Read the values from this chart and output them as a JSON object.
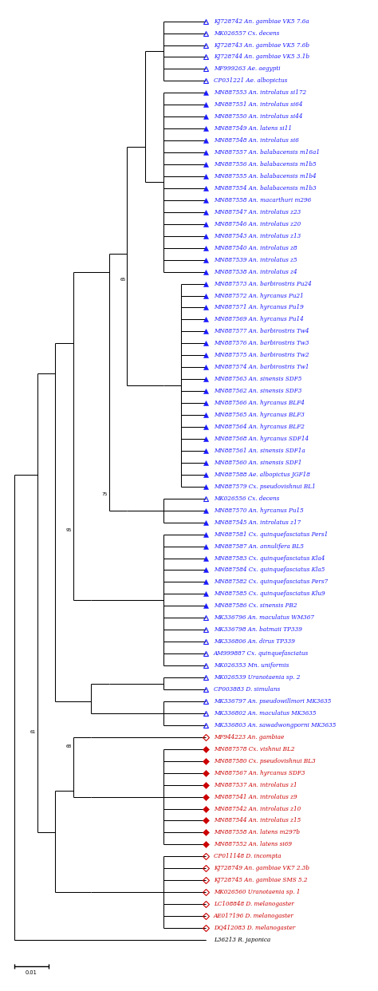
{
  "figsize": [
    4.74,
    12.42
  ],
  "dpi": 100,
  "taxa": [
    {
      "label": "KJ728742 An. gambiae VK5 7.6a",
      "symbol": "triangle_open",
      "color": "blue"
    },
    {
      "label": "MK026557 Cx. decens",
      "symbol": "triangle_open",
      "color": "blue"
    },
    {
      "label": "KJ728743 An. gambiae VK5 7.6b",
      "symbol": "triangle_open",
      "color": "blue"
    },
    {
      "label": "KJ728744 An. gambiae VK5 3.1b",
      "symbol": "triangle_open",
      "color": "blue"
    },
    {
      "label": "MF999263 Ae. aegypti",
      "symbol": "triangle_open",
      "color": "blue"
    },
    {
      "label": "CP031221 Ae. albopictus",
      "symbol": "triangle_open",
      "color": "blue"
    },
    {
      "label": "MN887553 An. introlatus si172",
      "symbol": "triangle_filled",
      "color": "blue"
    },
    {
      "label": "MN887551 An. introlatus si64",
      "symbol": "triangle_filled",
      "color": "blue"
    },
    {
      "label": "MN887550 An. introlatus si44",
      "symbol": "triangle_filled",
      "color": "blue"
    },
    {
      "label": "MN887549 An. latens si11",
      "symbol": "triangle_filled",
      "color": "blue"
    },
    {
      "label": "MN887548 An. introlatus si6",
      "symbol": "triangle_filled",
      "color": "blue"
    },
    {
      "label": "MN887557 An. balabacensis m16a1",
      "symbol": "triangle_filled",
      "color": "blue"
    },
    {
      "label": "MN887556 An. balabacensis m1b5",
      "symbol": "triangle_filled",
      "color": "blue"
    },
    {
      "label": "MN887555 An. balabacensis m1b4",
      "symbol": "triangle_filled",
      "color": "blue"
    },
    {
      "label": "MN887554 An. balabacensis m1b3",
      "symbol": "triangle_filled",
      "color": "blue"
    },
    {
      "label": "MN887558 An. macarthuri m296",
      "symbol": "triangle_filled",
      "color": "blue"
    },
    {
      "label": "MN887547 An. introlatus z23",
      "symbol": "triangle_filled",
      "color": "blue"
    },
    {
      "label": "MN887546 An. introlatus z20",
      "symbol": "triangle_filled",
      "color": "blue"
    },
    {
      "label": "MN887543 An. introlatus z13",
      "symbol": "triangle_filled",
      "color": "blue"
    },
    {
      "label": "MN887540 An. introlatus z8",
      "symbol": "triangle_filled",
      "color": "blue"
    },
    {
      "label": "MN887539 An. introlatus z5",
      "symbol": "triangle_filled",
      "color": "blue"
    },
    {
      "label": "MN887538 An. introlatus z4",
      "symbol": "triangle_filled",
      "color": "blue"
    },
    {
      "label": "MN887573 An. barbirostris Pu24",
      "symbol": "triangle_filled",
      "color": "blue"
    },
    {
      "label": "MN887572 An. hyrcanus Pu21",
      "symbol": "triangle_filled",
      "color": "blue"
    },
    {
      "label": "MN887571 An. hyrcanus Pu19",
      "symbol": "triangle_filled",
      "color": "blue"
    },
    {
      "label": "MN887569 An. hyrcanus Pu14",
      "symbol": "triangle_filled",
      "color": "blue"
    },
    {
      "label": "MN887577 An. barbirostris Tw4",
      "symbol": "triangle_filled",
      "color": "blue"
    },
    {
      "label": "MN887576 An. barbirostris Tw3",
      "symbol": "triangle_filled",
      "color": "blue"
    },
    {
      "label": "MN887575 An. barbirostris Tw2",
      "symbol": "triangle_filled",
      "color": "blue"
    },
    {
      "label": "MN887574 An. barbirostris Tw1",
      "symbol": "triangle_filled",
      "color": "blue"
    },
    {
      "label": "MN887563 An. sinensis SDF5",
      "symbol": "triangle_filled",
      "color": "blue"
    },
    {
      "label": "MN887562 An. sinensis SDF3",
      "symbol": "triangle_filled",
      "color": "blue"
    },
    {
      "label": "MN887566 An. hyrcanus BLF4",
      "symbol": "triangle_filled",
      "color": "blue"
    },
    {
      "label": "MN887565 An. hyrcanus BLF3",
      "symbol": "triangle_filled",
      "color": "blue"
    },
    {
      "label": "MN887564 An. hyrcanus BLF2",
      "symbol": "triangle_filled",
      "color": "blue"
    },
    {
      "label": "MN887568 An. hyrcanus SDF14",
      "symbol": "triangle_filled",
      "color": "blue"
    },
    {
      "label": "MN887561 An. sinensis SDF1a",
      "symbol": "triangle_filled",
      "color": "blue"
    },
    {
      "label": "MN887560 An. sinensis SDF1",
      "symbol": "triangle_filled",
      "color": "blue"
    },
    {
      "label": "MN887588 Ae. albopictus JGF18",
      "symbol": "triangle_filled",
      "color": "blue"
    },
    {
      "label": "MN887579 Cx. pseudovishnui BL1",
      "symbol": "triangle_filled",
      "color": "blue"
    },
    {
      "label": "MK026556 Cx. decens",
      "symbol": "triangle_open",
      "color": "blue"
    },
    {
      "label": "MN887570 An. hyrcanus Pu15",
      "symbol": "triangle_filled",
      "color": "blue"
    },
    {
      "label": "MN887545 An. introlatus z17",
      "symbol": "triangle_filled",
      "color": "blue"
    },
    {
      "label": "MN887581 Cx. quinquefasciatus Pers1",
      "symbol": "triangle_filled",
      "color": "blue"
    },
    {
      "label": "MN887587 An. annulifera BL5",
      "symbol": "triangle_filled",
      "color": "blue"
    },
    {
      "label": "MN887583 Cx. quinquefasciatus Kla4",
      "symbol": "triangle_filled",
      "color": "blue"
    },
    {
      "label": "MN887584 Cx. quinquefasciatus Kla5",
      "symbol": "triangle_filled",
      "color": "blue"
    },
    {
      "label": "MN887582 Cx. quinquefasciatus Pers7",
      "symbol": "triangle_filled",
      "color": "blue"
    },
    {
      "label": "MN887585 Cx. quinquefasciatus Klu9",
      "symbol": "triangle_filled",
      "color": "blue"
    },
    {
      "label": "MN887586 Cx. sinensis PB2",
      "symbol": "triangle_filled",
      "color": "blue"
    },
    {
      "label": "MK336796 An. maculatus WM367",
      "symbol": "triangle_open",
      "color": "blue"
    },
    {
      "label": "MK336798 An. batmaii TP339",
      "symbol": "triangle_open",
      "color": "blue"
    },
    {
      "label": "MK336806 An. dirus TP339",
      "symbol": "triangle_open",
      "color": "blue"
    },
    {
      "label": "AM999887 Cx. quinquefasciatus",
      "symbol": "triangle_open",
      "color": "blue"
    },
    {
      "label": "MK026353 Mn. uniformis",
      "symbol": "triangle_open",
      "color": "blue"
    },
    {
      "label": "MK026539 Uranotaenia sp. 2",
      "symbol": "triangle_open",
      "color": "blue"
    },
    {
      "label": "CP003883 D. simulans",
      "symbol": "triangle_open",
      "color": "blue"
    },
    {
      "label": "MK336797 An. pseudowillmori MK3635",
      "symbol": "triangle_open",
      "color": "blue"
    },
    {
      "label": "MK336802 An. maculatus MK3635",
      "symbol": "triangle_open",
      "color": "blue"
    },
    {
      "label": "MK336803 An. sawadwongporni MK3635",
      "symbol": "triangle_open",
      "color": "blue"
    },
    {
      "label": "MF944223 An. gambiae",
      "symbol": "diamond_open",
      "color": "red"
    },
    {
      "label": "MN887578 Cx. vishnui BL2",
      "symbol": "diamond_filled",
      "color": "red"
    },
    {
      "label": "MN887580 Cx. pseudovishnui BL3",
      "symbol": "diamond_filled",
      "color": "red"
    },
    {
      "label": "MN887567 An. hyrcanus SDF3",
      "symbol": "diamond_filled",
      "color": "red"
    },
    {
      "label": "MN887537 An. introlatus z1",
      "symbol": "diamond_filled",
      "color": "red"
    },
    {
      "label": "MN887541 An. introlatus z9",
      "symbol": "diamond_filled",
      "color": "red"
    },
    {
      "label": "MN887542 An. introlatus z10",
      "symbol": "diamond_filled",
      "color": "red"
    },
    {
      "label": "MN887544 An. introlatus z15",
      "symbol": "diamond_filled",
      "color": "red"
    },
    {
      "label": "MN887558 An. latens m297b",
      "symbol": "diamond_filled",
      "color": "red"
    },
    {
      "label": "MN887552 An. latens si69",
      "symbol": "diamond_filled",
      "color": "red"
    },
    {
      "label": "CP011148 D. incompta",
      "symbol": "diamond_open",
      "color": "red"
    },
    {
      "label": "KJ728749 An. gambiae VK7 2.3b",
      "symbol": "diamond_open",
      "color": "red"
    },
    {
      "label": "KJ728745 An. gambiae SMS 5.2",
      "symbol": "diamond_open",
      "color": "red"
    },
    {
      "label": "MK026560 Uranotaenia sp. 1",
      "symbol": "diamond_open",
      "color": "red"
    },
    {
      "label": "LC108848 D. melanogaster",
      "symbol": "diamond_open",
      "color": "red"
    },
    {
      "label": "AE017196 D. melanogaster",
      "symbol": "diamond_open",
      "color": "red"
    },
    {
      "label": "DQ412083 D. melanogaster",
      "symbol": "diamond_open",
      "color": "red"
    },
    {
      "label": "L36213 R. japonica",
      "symbol": "none",
      "color": "black"
    }
  ],
  "tree_color": "#000000",
  "label_color_blue": "#1a1aff",
  "label_color_red": "#cc0000",
  "label_color_black": "#000000",
  "font_size": 5.2,
  "symbol_size": 4.5,
  "node_labels": [
    {
      "text": "65",
      "idx": 22
    },
    {
      "text": "75",
      "idx": 41
    },
    {
      "text": "95",
      "idx": 43
    },
    {
      "text": "61",
      "idx": 59
    },
    {
      "text": "68",
      "idx": 60
    }
  ]
}
